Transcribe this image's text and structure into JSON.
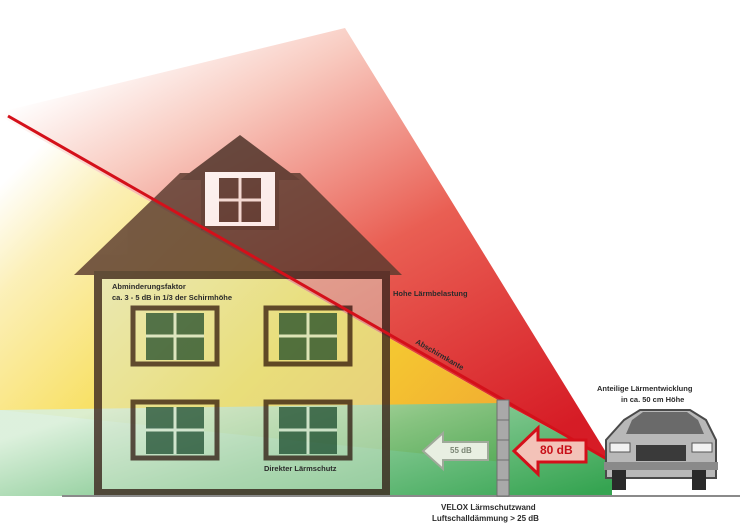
{
  "labels": {
    "attenuation_title": "Abminderungsfaktor",
    "attenuation_detail": "ca. 3 - 5 dB in 1/3 der Schirmhöhe",
    "high_noise": "Hohe Lärmbelastung",
    "diffraction_edge": "Abschirmkante",
    "direct_noise": "Direkter Lärmschutz",
    "car_noise_title": "Anteilige Lärmentwicklung",
    "car_noise_height": "in ca. 50 cm Höhe",
    "wall_name": "VELOX Lärmschutzwand",
    "wall_reduction": "Luftschalldämmung > 25 dB"
  },
  "arrows": {
    "incoming": "80 dB",
    "transmitted": "55 dB"
  },
  "colors": {
    "cone_red": "#d4101a",
    "cone_yellow": "#f5d21a",
    "shadow_green": "#2aa14a",
    "house_outline": "#3f2a22",
    "window_green": "#2f5a3f",
    "wall_grey": "#9a9a9a"
  }
}
